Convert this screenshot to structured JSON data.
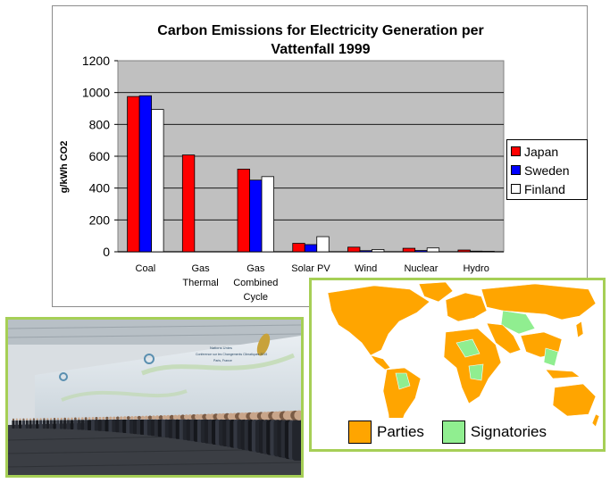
{
  "chart_data": {
    "type": "bar",
    "title": "Carbon Emissions for Electricity Generation per Vattenfall 1999",
    "title_lines": [
      "Carbon Emissions for Electricity Generation per",
      "Vattenfall 1999"
    ],
    "ylabel": "g/kWh CO2",
    "xlabel": "",
    "ylim": [
      0,
      1200
    ],
    "yticks": [
      0,
      200,
      400,
      600,
      800,
      1000,
      1200
    ],
    "categories": [
      "Coal",
      "Gas Thermal",
      "Gas Combined Cycle",
      "Solar PV",
      "Wind",
      "Nuclear",
      "Hydro"
    ],
    "category_lines": [
      [
        "Coal"
      ],
      [
        "Gas",
        "Thermal"
      ],
      [
        "Gas",
        "Combined",
        "Cycle"
      ],
      [
        "Solar PV"
      ],
      [
        "Wind"
      ],
      [
        "Nuclear"
      ],
      [
        "Hydro"
      ]
    ],
    "series": [
      {
        "name": "Japan",
        "color": "#ff0000",
        "values": [
          975,
          608,
          519,
          53,
          29,
          22,
          11
        ]
      },
      {
        "name": "Sweden",
        "color": "#0000ff",
        "values": [
          980,
          null,
          450,
          45,
          7,
          8,
          4
        ]
      },
      {
        "name": "Finland",
        "color": "#ffffff",
        "values": [
          894,
          null,
          472,
          95,
          14,
          24,
          3
        ]
      }
    ],
    "plot_background": "#c0c0c0",
    "grid": true,
    "legend_position": "right"
  },
  "photo": {
    "description_icon": "group-photo-icon",
    "banner_text": "United Nations Conference on Climate Change 2015 Paris, France",
    "banner_lines": [
      "Nations Unies",
      "Conference sur les Changements Climatiques 2015",
      "Paris, France"
    ],
    "accent_color": "#a6cf56"
  },
  "map": {
    "legend": [
      {
        "label": "Parties",
        "color": "#ffa500"
      },
      {
        "label": "Signatories",
        "color": "#90ee90"
      }
    ]
  }
}
